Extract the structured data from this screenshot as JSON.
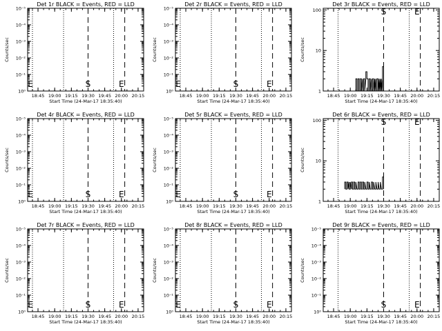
{
  "chart_data": [
    {
      "type": "line",
      "title": "Det 1r BLACK = Events, RED = LLD",
      "xlabel": "Start Time (24-Mar-17 18:35:40)",
      "ylabel": "Counts/sec",
      "yscale": "log",
      "y_ticks": [
        "10⁰",
        "10⁻¹",
        "10⁻²",
        "10⁻³",
        "10⁻⁴",
        "10⁻⁵"
      ],
      "x_ticks": [
        "18:45",
        "19:00",
        "19:15",
        "19:30",
        "19:45",
        "20:00",
        "20:15"
      ],
      "x_range": [
        "18:35:40",
        "20:20:00"
      ],
      "markers": [
        {
          "label": "E",
          "time": "18:35:40"
        },
        {
          "label": "S",
          "time": "19:30"
        },
        {
          "label": "E",
          "time": "20:00"
        }
      ],
      "dashed_lines": [
        "19:30",
        "20:03"
      ],
      "dotted_lines": [
        "18:40",
        "19:08",
        "19:53"
      ],
      "series": []
    },
    {
      "type": "line",
      "title": "Det 2r BLACK = Events, RED = LLD",
      "xlabel": "Start Time (24-Mar-17 18:35:40)",
      "ylabel": "Counts/sec",
      "yscale": "log",
      "y_ticks": [
        "10⁰",
        "10⁻¹",
        "10⁻²",
        "10⁻³",
        "10⁻⁴",
        "10⁻⁵"
      ],
      "x_ticks": [
        "18:45",
        "19:00",
        "19:15",
        "19:30",
        "19:45",
        "20:00",
        "20:15"
      ],
      "x_range": [
        "18:35:40",
        "20:20:00"
      ],
      "markers": [
        {
          "label": "E",
          "time": "18:35:40"
        },
        {
          "label": "S",
          "time": "19:30"
        },
        {
          "label": "E",
          "time": "20:00"
        }
      ],
      "dashed_lines": [
        "19:30",
        "20:03"
      ],
      "dotted_lines": [
        "18:40",
        "19:08",
        "19:53"
      ],
      "series": []
    },
    {
      "type": "line",
      "title": "Det 3r BLACK = Events, RED = LLD",
      "xlabel": "Start Time (24-Mar-17 18:35:40)",
      "ylabel": "Counts/sec",
      "yscale": "log",
      "y_ticks": [
        "1",
        "10",
        "100"
      ],
      "x_ticks": [
        "18:45",
        "19:00",
        "19:15",
        "19:30",
        "19:45",
        "20:00",
        "20:15"
      ],
      "x_range": [
        "18:35:40",
        "20:20:00"
      ],
      "markers": [
        {
          "label": "S",
          "time": "19:30"
        },
        {
          "label": "E",
          "time": "20:00"
        }
      ],
      "dashed_lines": [
        "19:30",
        "20:03"
      ],
      "dotted_lines": [
        "18:49",
        "19:53"
      ],
      "series": [
        {
          "points": [
            [
              "19:05",
              1
            ],
            [
              "19:05",
              2
            ],
            [
              "19:06",
              2
            ],
            [
              "19:06",
              1
            ],
            [
              "19:07",
              1
            ],
            [
              "19:07",
              2
            ],
            [
              "19:08",
              2
            ],
            [
              "19:08",
              1
            ],
            [
              "19:09",
              1
            ],
            [
              "19:09",
              2
            ],
            [
              "19:10",
              2
            ],
            [
              "19:10",
              1
            ],
            [
              "19:11",
              2
            ],
            [
              "19:11",
              1
            ],
            [
              "19:12",
              1
            ],
            [
              "19:12",
              2
            ],
            [
              "19:13",
              2
            ],
            [
              "19:13",
              1
            ],
            [
              "19:14",
              2
            ],
            [
              "19:14",
              3
            ],
            [
              "19:15",
              3
            ],
            [
              "19:15",
              2
            ],
            [
              "19:16",
              2
            ],
            [
              "19:16",
              1
            ],
            [
              "19:17",
              1
            ],
            [
              "19:17",
              2
            ],
            [
              "19:18",
              2
            ],
            [
              "19:18",
              1
            ],
            [
              "19:19",
              2
            ],
            [
              "19:19",
              1
            ],
            [
              "19:20",
              1
            ],
            [
              "19:20",
              2
            ],
            [
              "19:21",
              2
            ],
            [
              "19:21",
              1
            ],
            [
              "19:22",
              2
            ],
            [
              "19:22",
              1
            ],
            [
              "19:23",
              2
            ],
            [
              "19:23",
              1
            ],
            [
              "19:24",
              1
            ],
            [
              "19:24",
              2
            ],
            [
              "19:25",
              2
            ],
            [
              "19:25",
              1
            ],
            [
              "19:26",
              2
            ],
            [
              "19:26",
              1
            ],
            [
              "19:27",
              2
            ],
            [
              "19:27",
              1
            ],
            [
              "19:28",
              2
            ],
            [
              "19:28",
              1
            ],
            [
              "19:29",
              2
            ],
            [
              "19:29",
              1
            ],
            [
              "19:29",
              4
            ],
            [
              "19:30",
              4
            ],
            [
              "19:30",
              1
            ]
          ]
        }
      ]
    },
    {
      "type": "line",
      "title": "Det 4r BLACK = Events, RED = LLD",
      "xlabel": "Start Time (24-Mar-17 18:35:40)",
      "ylabel": "Counts/sec",
      "yscale": "log",
      "y_ticks": [
        "10⁰",
        "10⁻¹",
        "10⁻²",
        "10⁻³",
        "10⁻⁴",
        "10⁻⁵"
      ],
      "x_ticks": [
        "18:45",
        "19:00",
        "19:15",
        "19:30",
        "19:45",
        "20:00",
        "20:15"
      ],
      "x_range": [
        "18:35:40",
        "20:20:00"
      ],
      "markers": [
        {
          "label": "E",
          "time": "18:35:40"
        },
        {
          "label": "S",
          "time": "19:30"
        },
        {
          "label": "E",
          "time": "20:00"
        }
      ],
      "dashed_lines": [
        "19:30",
        "20:03"
      ],
      "dotted_lines": [
        "18:40",
        "19:08",
        "19:53"
      ],
      "series": []
    },
    {
      "type": "line",
      "title": "Det 5r BLACK = Events, RED = LLD",
      "xlabel": "Start Time (24-Mar-17 18:35:40)",
      "ylabel": "Counts/sec",
      "yscale": "log",
      "y_ticks": [
        "10⁰",
        "10⁻¹",
        "10⁻²",
        "10⁻³",
        "10⁻⁴",
        "10⁻⁵"
      ],
      "x_ticks": [
        "18:45",
        "19:00",
        "19:15",
        "19:30",
        "19:45",
        "20:00",
        "20:15"
      ],
      "x_range": [
        "18:35:40",
        "20:20:00"
      ],
      "markers": [
        {
          "label": "E",
          "time": "18:35:40"
        },
        {
          "label": "S",
          "time": "19:30"
        },
        {
          "label": "E",
          "time": "20:00"
        }
      ],
      "dashed_lines": [
        "19:30",
        "20:03"
      ],
      "dotted_lines": [
        "18:40",
        "19:08",
        "19:53"
      ],
      "series": []
    },
    {
      "type": "line",
      "title": "Det 6r BLACK = Events, RED = LLD",
      "xlabel": "Start Time (24-Mar-17 18:35:40)",
      "ylabel": "Counts/sec",
      "yscale": "log",
      "y_ticks": [
        "1",
        "10",
        "100"
      ],
      "x_ticks": [
        "18:45",
        "19:00",
        "19:15",
        "19:30",
        "19:45",
        "20:00",
        "20:15"
      ],
      "x_range": [
        "18:35:40",
        "20:20:00"
      ],
      "markers": [
        {
          "label": "S",
          "time": "19:30"
        },
        {
          "label": "E",
          "time": "20:00"
        }
      ],
      "dashed_lines": [
        "19:30",
        "20:03"
      ],
      "dotted_lines": [
        "18:49",
        "19:53"
      ],
      "series": [
        {
          "points": [
            [
              "18:55",
              2
            ],
            [
              "18:55",
              3
            ],
            [
              "18:56",
              3
            ],
            [
              "18:56",
              2
            ],
            [
              "18:57",
              2
            ],
            [
              "18:57",
              3
            ],
            [
              "18:58",
              3
            ],
            [
              "18:58",
              2
            ],
            [
              "18:59",
              3
            ],
            [
              "18:59",
              2
            ],
            [
              "19:00",
              2
            ],
            [
              "19:00",
              3
            ],
            [
              "19:01",
              2
            ],
            [
              "19:01",
              3
            ],
            [
              "19:02",
              3
            ],
            [
              "19:02",
              2
            ],
            [
              "19:03",
              2
            ],
            [
              "19:03",
              3
            ],
            [
              "19:04",
              3
            ],
            [
              "19:04",
              2
            ],
            [
              "19:05",
              2
            ],
            [
              "19:05",
              3
            ],
            [
              "19:06",
              2
            ],
            [
              "19:07",
              2
            ],
            [
              "19:07",
              3
            ],
            [
              "19:08",
              3
            ],
            [
              "19:08",
              2
            ],
            [
              "19:09",
              2
            ],
            [
              "19:09",
              3
            ],
            [
              "19:10",
              3
            ],
            [
              "19:10",
              2
            ],
            [
              "19:11",
              2
            ],
            [
              "19:11",
              3
            ],
            [
              "19:12",
              3
            ],
            [
              "19:12",
              2
            ],
            [
              "19:13",
              2
            ],
            [
              "19:13",
              3
            ],
            [
              "19:14",
              2
            ],
            [
              "19:15",
              2
            ],
            [
              "19:15",
              3
            ],
            [
              "19:16",
              3
            ],
            [
              "19:16",
              2
            ],
            [
              "19:17",
              2
            ],
            [
              "19:17",
              3
            ],
            [
              "19:18",
              2
            ],
            [
              "19:19",
              2
            ],
            [
              "19:19",
              3
            ],
            [
              "19:20",
              3
            ],
            [
              "19:20",
              2
            ],
            [
              "19:21",
              2
            ],
            [
              "19:21",
              3
            ],
            [
              "19:22",
              2
            ],
            [
              "19:23",
              2
            ],
            [
              "19:23",
              3
            ],
            [
              "19:24",
              2
            ],
            [
              "19:25",
              2
            ],
            [
              "19:25",
              3
            ],
            [
              "19:26",
              2
            ],
            [
              "19:27",
              2
            ],
            [
              "19:27",
              3
            ],
            [
              "19:28",
              2
            ],
            [
              "19:29",
              2
            ],
            [
              "19:29",
              4
            ],
            [
              "19:30",
              4
            ],
            [
              "19:30",
              2
            ]
          ]
        }
      ]
    },
    {
      "type": "line",
      "title": "Det 7r BLACK = Events, RED = LLD",
      "xlabel": "Start Time (24-Mar-17 18:35:40)",
      "ylabel": "Counts/sec",
      "yscale": "log",
      "y_ticks": [
        "10⁰",
        "10⁻¹",
        "10⁻²",
        "10⁻³",
        "10⁻⁴",
        "10⁻⁵"
      ],
      "x_ticks": [
        "18:45",
        "19:00",
        "19:15",
        "19:30",
        "19:45",
        "20:00",
        "20:15"
      ],
      "x_range": [
        "18:35:40",
        "20:20:00"
      ],
      "markers": [
        {
          "label": "E",
          "time": "18:35:40"
        },
        {
          "label": "S",
          "time": "19:30"
        },
        {
          "label": "E",
          "time": "20:00"
        }
      ],
      "dashed_lines": [
        "19:30",
        "20:03"
      ],
      "dotted_lines": [
        "18:40",
        "19:08",
        "19:53"
      ],
      "series": []
    },
    {
      "type": "line",
      "title": "Det 8r BLACK = Events, RED = LLD",
      "xlabel": "Start Time (24-Mar-17 18:35:40)",
      "ylabel": "Counts/sec",
      "yscale": "log",
      "y_ticks": [
        "10⁰",
        "10⁻¹",
        "10⁻²",
        "10⁻³",
        "10⁻⁴",
        "10⁻⁵"
      ],
      "x_ticks": [
        "18:45",
        "19:00",
        "19:15",
        "19:30",
        "19:45",
        "20:00",
        "20:15"
      ],
      "x_range": [
        "18:35:40",
        "20:20:00"
      ],
      "markers": [
        {
          "label": "E",
          "time": "18:35:40"
        },
        {
          "label": "S",
          "time": "19:30"
        },
        {
          "label": "E",
          "time": "20:00"
        }
      ],
      "dashed_lines": [
        "19:30",
        "20:03"
      ],
      "dotted_lines": [
        "18:40",
        "19:08",
        "19:53"
      ],
      "series": []
    },
    {
      "type": "line",
      "title": "Det 9r BLACK = Events, RED = LLD",
      "xlabel": "Start Time (24-Mar-17 18:35:40)",
      "ylabel": "Counts/sec",
      "yscale": "log",
      "y_ticks": [
        "10⁰",
        "10⁻¹",
        "10⁻²",
        "10⁻³",
        "10⁻⁴",
        "10⁻⁵"
      ],
      "x_ticks": [
        "18:45",
        "19:00",
        "19:15",
        "19:30",
        "19:45",
        "20:00",
        "20:15"
      ],
      "x_range": [
        "18:35:40",
        "20:20:00"
      ],
      "markers": [
        {
          "label": "S",
          "time": "19:30"
        },
        {
          "label": "E",
          "time": "20:00"
        }
      ],
      "dashed_lines": [
        "19:30",
        "20:03"
      ],
      "dotted_lines": [
        "18:49",
        "19:53"
      ],
      "series": []
    }
  ]
}
